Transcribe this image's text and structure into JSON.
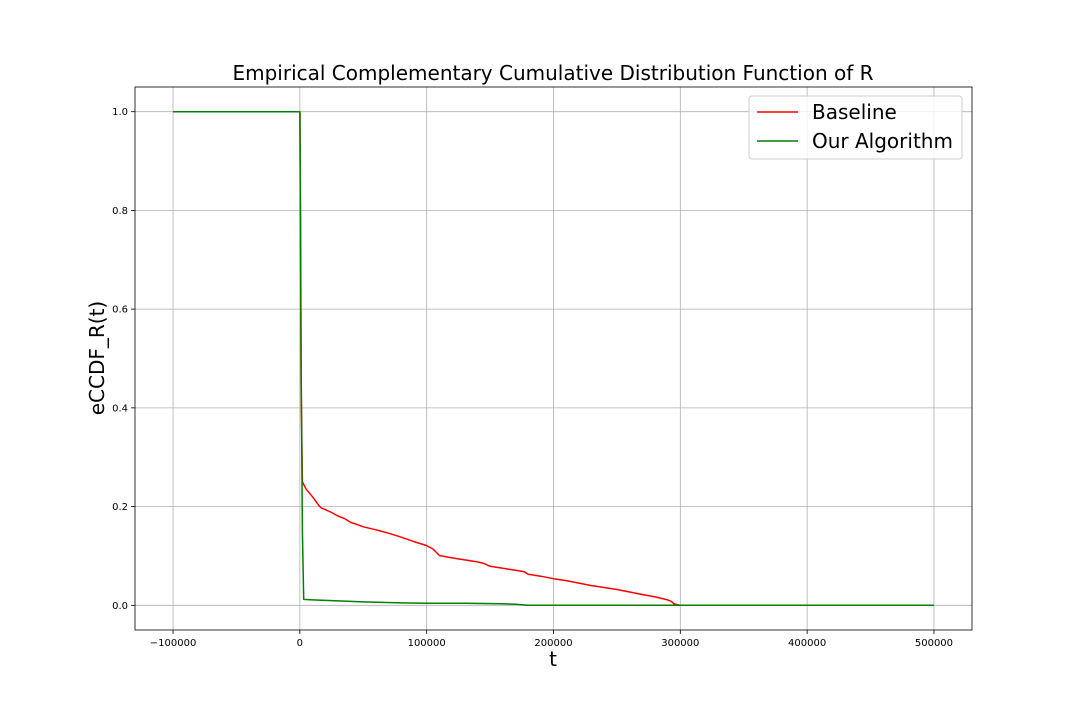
{
  "chart_data": {
    "type": "line",
    "title": "Empirical Complementary Cumulative Distribution Function of R",
    "xlabel": "t",
    "ylabel": "eCCDF_R(t)",
    "xlim": [
      -130000,
      530000
    ],
    "ylim": [
      -0.05,
      1.05
    ],
    "xticks": [
      -100000,
      0,
      100000,
      200000,
      300000,
      400000,
      500000
    ],
    "xtick_labels": [
      "−100000",
      "0",
      "100000",
      "200000",
      "300000",
      "400000",
      "500000"
    ],
    "yticks": [
      0.0,
      0.2,
      0.4,
      0.6,
      0.8,
      1.0
    ],
    "ytick_labels": [
      "0.0",
      "0.2",
      "0.4",
      "0.6",
      "0.8",
      "1.0"
    ],
    "grid": true,
    "legend_position": "top-right",
    "series": [
      {
        "name": "Baseline",
        "color": "#ff0000",
        "x": [
          -100000,
          0,
          1000,
          2000,
          5000,
          10000,
          15000,
          17000,
          20000,
          25000,
          30000,
          35000,
          40000,
          45000,
          50000,
          60000,
          70000,
          80000,
          90000,
          100000,
          105000,
          110000,
          120000,
          130000,
          140000,
          145000,
          150000,
          160000,
          170000,
          177000,
          180000,
          190000,
          200000,
          210000,
          220000,
          230000,
          240000,
          250000,
          260000,
          270000,
          280000,
          290000,
          293000,
          295000,
          300000,
          400000,
          500000
        ],
        "y": [
          1.0,
          1.0,
          0.45,
          0.25,
          0.235,
          0.22,
          0.202,
          0.197,
          0.194,
          0.188,
          0.181,
          0.176,
          0.168,
          0.164,
          0.159,
          0.153,
          0.146,
          0.138,
          0.129,
          0.121,
          0.114,
          0.101,
          0.096,
          0.092,
          0.088,
          0.085,
          0.079,
          0.075,
          0.071,
          0.068,
          0.063,
          0.059,
          0.054,
          0.05,
          0.045,
          0.04,
          0.036,
          0.032,
          0.027,
          0.022,
          0.017,
          0.011,
          0.008,
          0.003,
          0.0,
          0.0,
          0.0
        ]
      },
      {
        "name": "Our Algorithm",
        "color": "#008000",
        "x": [
          -100000,
          0,
          500,
          1000,
          2000,
          3000,
          10000,
          20000,
          50000,
          80000,
          100000,
          130000,
          160000,
          170000,
          180000,
          300000,
          400000,
          500000
        ],
        "y": [
          1.0,
          1.0,
          0.8,
          0.5,
          0.15,
          0.012,
          0.011,
          0.01,
          0.007,
          0.005,
          0.004,
          0.004,
          0.003,
          0.002,
          0.0,
          0.0,
          0.0,
          0.0
        ]
      }
    ]
  }
}
